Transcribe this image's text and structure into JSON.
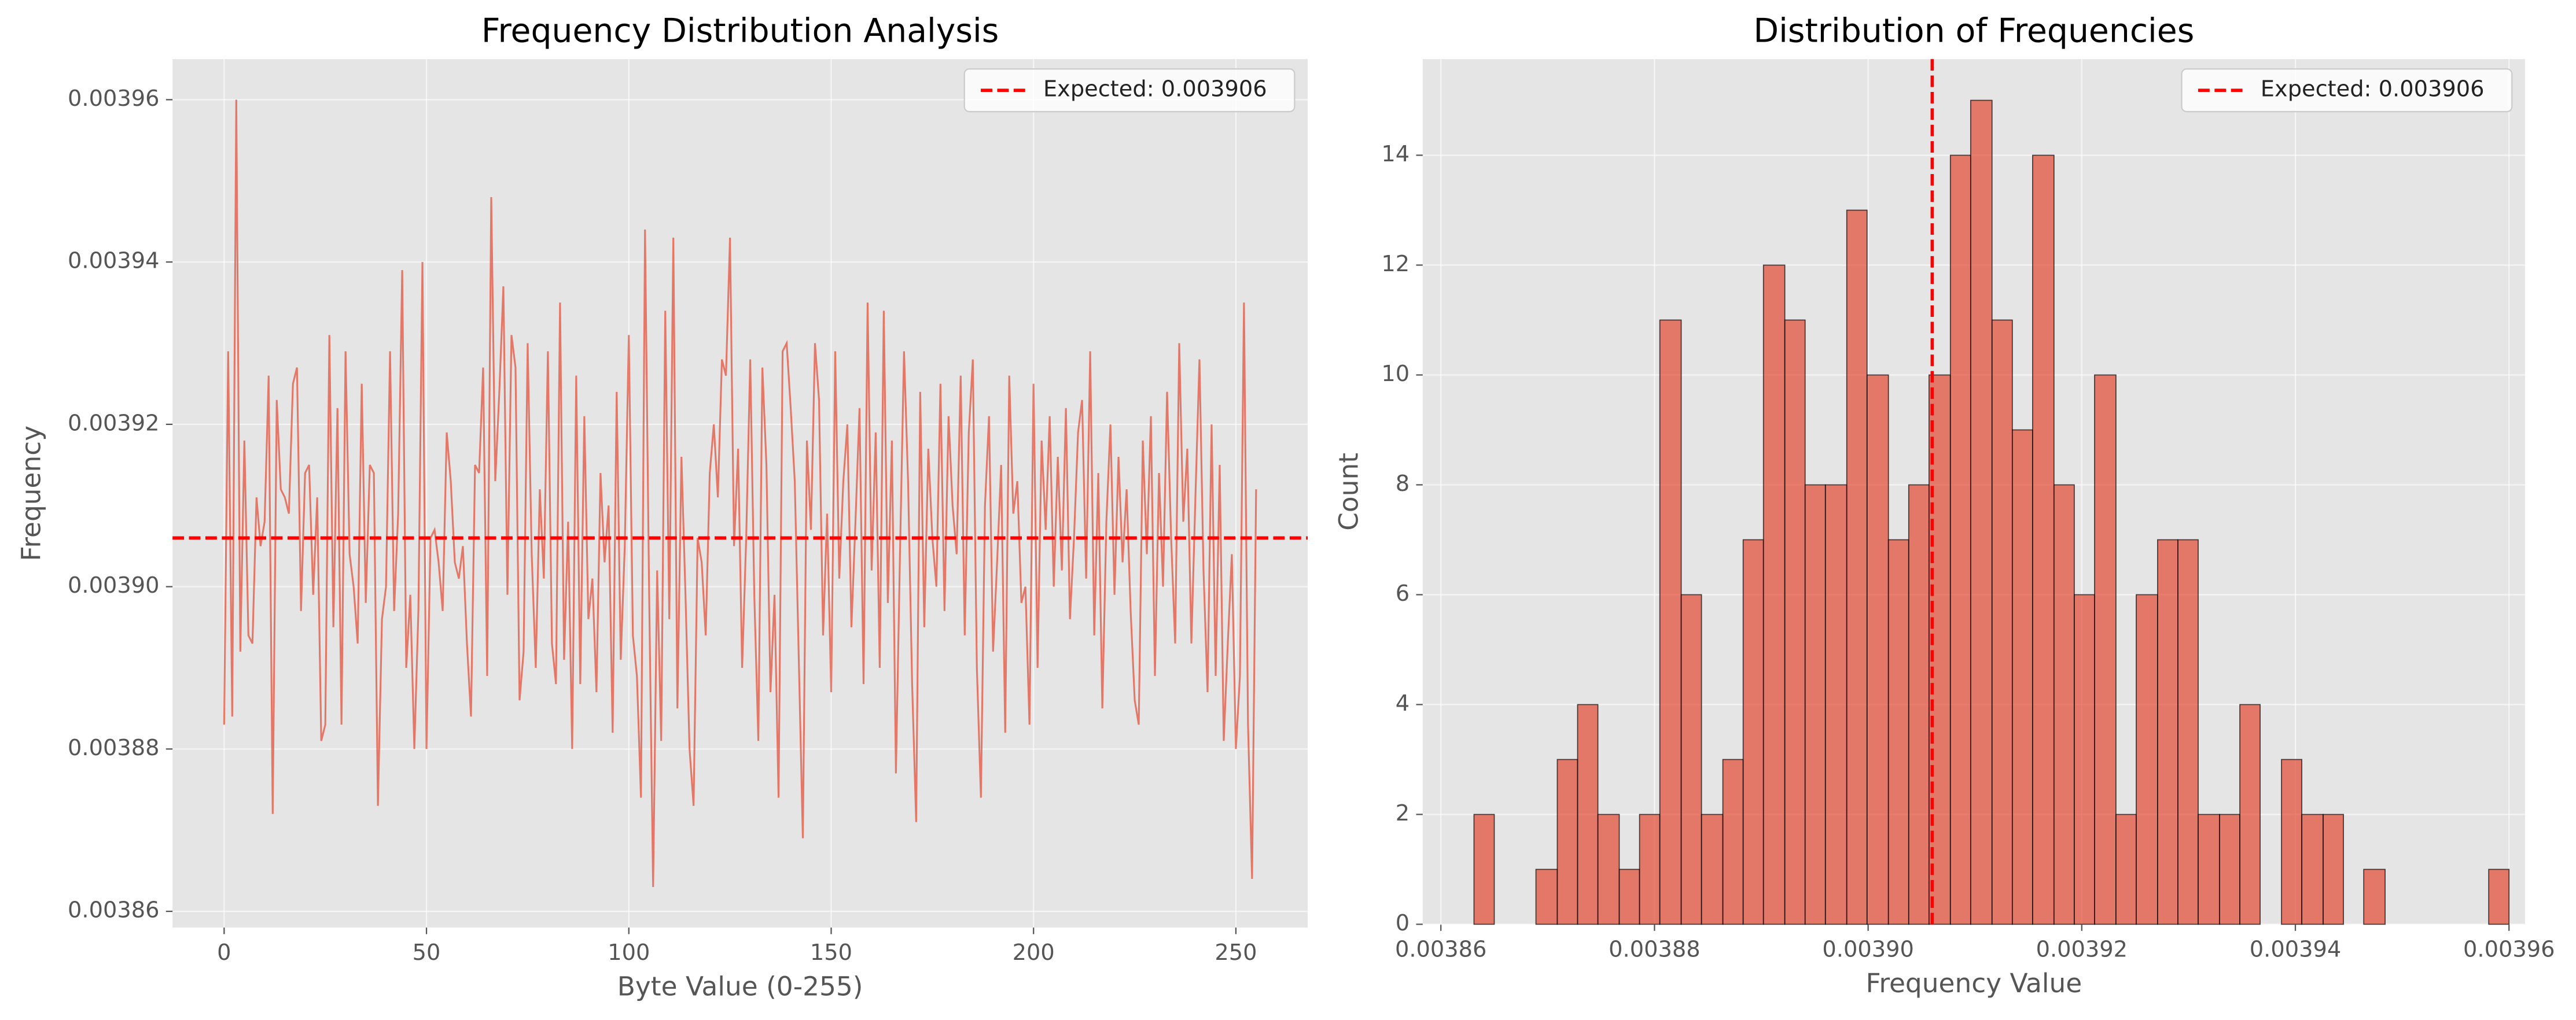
{
  "chart_data": [
    {
      "type": "line",
      "title": "Frequency Distribution Analysis",
      "xlabel": "Byte Value (0-255)",
      "ylabel": "Frequency",
      "color": "#e24a33",
      "opacity": 0.7,
      "grid": true,
      "legend_position": "upper right",
      "xlim": [
        -12.75,
        267.75
      ],
      "ylim": [
        0.003858,
        0.003965
      ],
      "xticks": [
        0,
        50,
        100,
        150,
        200,
        250
      ],
      "yticks": [
        0.00386,
        0.00388,
        {
          "value": 0.0039,
          "label": "0.00390"
        },
        0.00392,
        0.00394,
        0.00396
      ],
      "reference_line": {
        "name": "Expected: 0.003906",
        "value": 0.003906,
        "color": "#ff0000",
        "orientation": "horizontal"
      },
      "x": [
        0,
        1,
        2,
        3,
        4,
        5,
        6,
        7,
        8,
        9,
        10,
        11,
        12,
        13,
        14,
        15,
        16,
        17,
        18,
        19,
        20,
        21,
        22,
        23,
        24,
        25,
        26,
        27,
        28,
        29,
        30,
        31,
        32,
        33,
        34,
        35,
        36,
        37,
        38,
        39,
        40,
        41,
        42,
        43,
        44,
        45,
        46,
        47,
        48,
        49,
        50,
        51,
        52,
        53,
        54,
        55,
        56,
        57,
        58,
        59,
        60,
        61,
        62,
        63,
        64,
        65,
        66,
        67,
        68,
        69,
        70,
        71,
        72,
        73,
        74,
        75,
        76,
        77,
        78,
        79,
        80,
        81,
        82,
        83,
        84,
        85,
        86,
        87,
        88,
        89,
        90,
        91,
        92,
        93,
        94,
        95,
        96,
        97,
        98,
        99,
        100,
        101,
        102,
        103,
        104,
        105,
        106,
        107,
        108,
        109,
        110,
        111,
        112,
        113,
        114,
        115,
        116,
        117,
        118,
        119,
        120,
        121,
        122,
        123,
        124,
        125,
        126,
        127,
        128,
        129,
        130,
        131,
        132,
        133,
        134,
        135,
        136,
        137,
        138,
        139,
        140,
        141,
        142,
        143,
        144,
        145,
        146,
        147,
        148,
        149,
        150,
        151,
        152,
        153,
        154,
        155,
        156,
        157,
        158,
        159,
        160,
        161,
        162,
        163,
        164,
        165,
        166,
        167,
        168,
        169,
        170,
        171,
        172,
        173,
        174,
        175,
        176,
        177,
        178,
        179,
        180,
        181,
        182,
        183,
        184,
        185,
        186,
        187,
        188,
        189,
        190,
        191,
        192,
        193,
        194,
        195,
        196,
        197,
        198,
        199,
        200,
        201,
        202,
        203,
        204,
        205,
        206,
        207,
        208,
        209,
        210,
        211,
        212,
        213,
        214,
        215,
        216,
        217,
        218,
        219,
        220,
        221,
        222,
        223,
        224,
        225,
        226,
        227,
        228,
        229,
        230,
        231,
        232,
        233,
        234,
        235,
        236,
        237,
        238,
        239,
        240,
        241,
        242,
        243,
        244,
        245,
        246,
        247,
        248,
        249,
        250,
        251,
        252,
        253,
        254,
        255
      ],
      "values": [
        0.003883,
        0.003929,
        0.003884,
        0.00396,
        0.003892,
        0.003918,
        0.003894,
        0.003893,
        0.003911,
        0.003905,
        0.003908,
        0.003926,
        0.003872,
        0.003923,
        0.003912,
        0.003911,
        0.003909,
        0.003925,
        0.003927,
        0.003897,
        0.003914,
        0.003915,
        0.003899,
        0.003911,
        0.003881,
        0.003883,
        0.003931,
        0.003895,
        0.003922,
        0.003883,
        0.003929,
        0.003904,
        0.0039,
        0.003893,
        0.003925,
        0.003898,
        0.003915,
        0.003914,
        0.003873,
        0.003896,
        0.0039,
        0.003929,
        0.003897,
        0.003909,
        0.003939,
        0.00389,
        0.003899,
        0.00388,
        0.003897,
        0.00394,
        0.00388,
        0.003906,
        0.003907,
        0.003903,
        0.003897,
        0.003919,
        0.003913,
        0.003903,
        0.003901,
        0.003905,
        0.003893,
        0.003884,
        0.003915,
        0.003914,
        0.003927,
        0.003889,
        0.003948,
        0.003913,
        0.003924,
        0.003937,
        0.003899,
        0.003931,
        0.003927,
        0.003886,
        0.003892,
        0.00393,
        0.003904,
        0.00389,
        0.003912,
        0.003901,
        0.003929,
        0.003893,
        0.003888,
        0.003935,
        0.003891,
        0.003908,
        0.00388,
        0.003926,
        0.003888,
        0.003921,
        0.003896,
        0.003901,
        0.003887,
        0.003914,
        0.003903,
        0.00391,
        0.003882,
        0.003924,
        0.003891,
        0.003905,
        0.003931,
        0.003894,
        0.003889,
        0.003874,
        0.003944,
        0.0039,
        0.003863,
        0.003902,
        0.003881,
        0.003934,
        0.003896,
        0.003943,
        0.003885,
        0.003916,
        0.003899,
        0.00388,
        0.003873,
        0.003906,
        0.003903,
        0.003894,
        0.003914,
        0.00392,
        0.003911,
        0.003928,
        0.003926,
        0.003943,
        0.003905,
        0.003917,
        0.00389,
        0.003906,
        0.003928,
        0.003899,
        0.003881,
        0.003927,
        0.003915,
        0.003887,
        0.003899,
        0.003874,
        0.003929,
        0.00393,
        0.003922,
        0.003913,
        0.003891,
        0.003869,
        0.003918,
        0.003907,
        0.00393,
        0.003923,
        0.003894,
        0.003909,
        0.003887,
        0.003929,
        0.003901,
        0.003913,
        0.00392,
        0.003895,
        0.003908,
        0.003922,
        0.003888,
        0.003935,
        0.003902,
        0.003919,
        0.00389,
        0.003934,
        0.003898,
        0.003918,
        0.003877,
        0.003904,
        0.003929,
        0.003913,
        0.003888,
        0.003871,
        0.003924,
        0.003895,
        0.003917,
        0.003906,
        0.0039,
        0.003925,
        0.003897,
        0.003921,
        0.00391,
        0.003904,
        0.003926,
        0.003894,
        0.003919,
        0.003928,
        0.00389,
        0.003874,
        0.00391,
        0.003921,
        0.003892,
        0.003903,
        0.003915,
        0.003882,
        0.003926,
        0.003909,
        0.003913,
        0.003898,
        0.0039,
        0.003883,
        0.003925,
        0.00389,
        0.003918,
        0.003907,
        0.003921,
        0.0039,
        0.003916,
        0.003902,
        0.003922,
        0.003896,
        0.003906,
        0.003919,
        0.003923,
        0.003901,
        0.003929,
        0.003894,
        0.003914,
        0.003885,
        0.003908,
        0.00392,
        0.003899,
        0.003916,
        0.003903,
        0.003912,
        0.003897,
        0.003886,
        0.003883,
        0.003918,
        0.003904,
        0.003921,
        0.003889,
        0.003914,
        0.0039,
        0.003924,
        0.003906,
        0.003893,
        0.00393,
        0.003908,
        0.003917,
        0.003893,
        0.003911,
        0.003928,
        0.003902,
        0.003887,
        0.00392,
        0.003889,
        0.003915,
        0.003881,
        0.003893,
        0.003904,
        0.00388,
        0.003889,
        0.003935,
        0.003883,
        0.003864,
        0.003912
      ]
    },
    {
      "type": "histogram",
      "title": "Distribution of Frequencies",
      "xlabel": "Frequency Value",
      "ylabel": "Count",
      "color": "#e24a33",
      "opacity": 0.7,
      "edgecolor": "#000000",
      "grid": true,
      "legend_position": "upper right",
      "xlim": [
        0.0038583,
        0.0039615
      ],
      "ylim": [
        0,
        15.75
      ],
      "xticks": [
        0.00386,
        0.00388,
        {
          "value": 0.0039,
          "label": "0.00390"
        },
        0.00392,
        0.00394,
        0.00396
      ],
      "yticks": [
        0,
        2,
        4,
        6,
        8,
        10,
        12,
        14
      ],
      "reference_line": {
        "name": "Expected: 0.003906",
        "value": 0.003906,
        "color": "#ff0000",
        "orientation": "vertical"
      },
      "bins": [
        0.0038631,
        0.003865,
        0.003867,
        0.0038689,
        0.0038709,
        0.0038728,
        0.0038747,
        0.0038767,
        0.0038786,
        0.0038805,
        0.0038825,
        0.0038844,
        0.0038864,
        0.0038883,
        0.0038902,
        0.0038922,
        0.0038941,
        0.003896,
        0.003898,
        0.0038999,
        0.0039019,
        0.0039038,
        0.0039057,
        0.0039077,
        0.0039096,
        0.0039116,
        0.0039135,
        0.0039154,
        0.0039174,
        0.0039193,
        0.0039212,
        0.0039232,
        0.0039251,
        0.0039271,
        0.003929,
        0.0039309,
        0.0039329,
        0.0039348,
        0.0039367,
        0.0039387,
        0.0039406,
        0.0039426,
        0.0039445,
        0.0039464,
        0.0039484,
        0.0039503,
        0.0039522,
        0.0039542,
        0.0039561,
        0.0039581,
        0.00396
      ],
      "counts": [
        2,
        0,
        0,
        1,
        3,
        4,
        2,
        1,
        2,
        11,
        6,
        2,
        3,
        7,
        12,
        11,
        8,
        8,
        13,
        10,
        7,
        8,
        10,
        14,
        15,
        11,
        9,
        14,
        8,
        6,
        10,
        2,
        6,
        7,
        7,
        2,
        2,
        4,
        0,
        3,
        2,
        2,
        0,
        1,
        0,
        0,
        0,
        0,
        0,
        1
      ]
    }
  ]
}
